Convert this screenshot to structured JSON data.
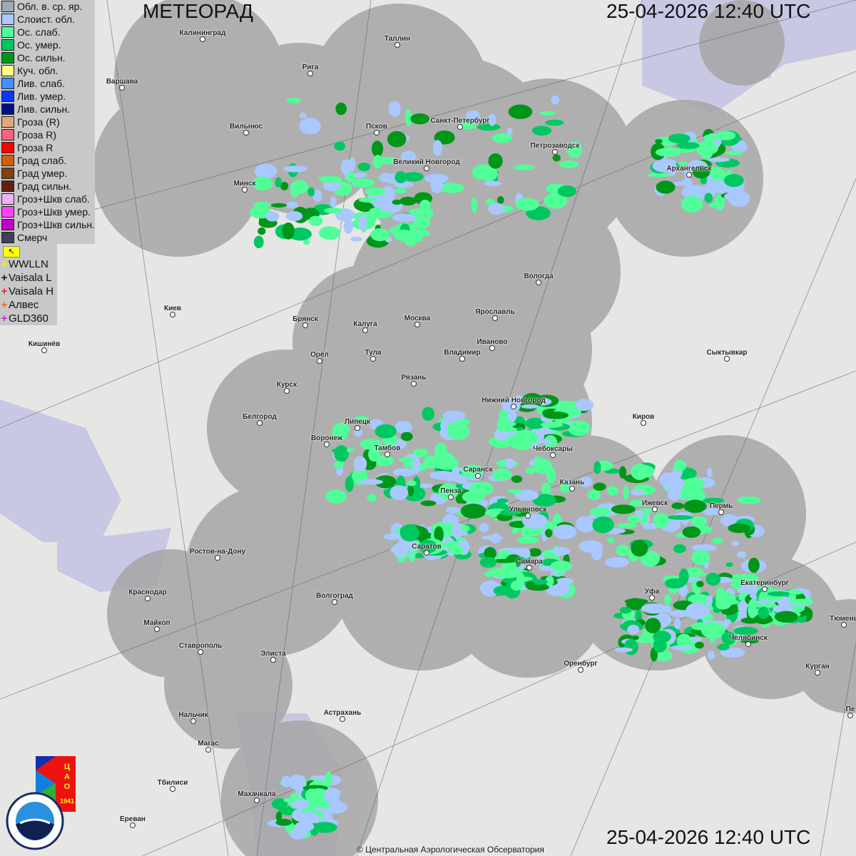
{
  "header": {
    "title": "МЕТЕОРАД",
    "timestamp": "25-04-2026  12:40 UTC"
  },
  "legend": [
    {
      "label": "Обл. в. ср. яр.",
      "color": "#a0a8b0"
    },
    {
      "label": "Слоист. обл.",
      "color": "#a8c8ff"
    },
    {
      "label": "Ос. слаб.",
      "color": "#50ff98"
    },
    {
      "label": "Ос. умер.",
      "color": "#00c860"
    },
    {
      "label": "Ос. сильн.",
      "color": "#009618"
    },
    {
      "label": "Куч. обл.",
      "color": "#ffff88"
    },
    {
      "label": "Лив. слаб.",
      "color": "#4090ff"
    },
    {
      "label": "Лив. умер.",
      "color": "#0838f8"
    },
    {
      "label": "Лив. сильн.",
      "color": "#001080"
    },
    {
      "label": "Гроза (R)",
      "color": "#e0a878"
    },
    {
      "label": "Гроза R)",
      "color": "#ff6080"
    },
    {
      "label": "Гроза R",
      "color": "#ff0000"
    },
    {
      "label": "Град слаб.",
      "color": "#d06010"
    },
    {
      "label": "Град умер.",
      "color": "#804010"
    },
    {
      "label": "Град сильн.",
      "color": "#602010"
    },
    {
      "label": "Гроз+Шкв слаб.",
      "color": "#f0b0f8"
    },
    {
      "label": "Гроз+Шкв умер.",
      "color": "#ff40ff"
    },
    {
      "label": "Гроз+Шкв сильн.",
      "color": "#c000c8"
    },
    {
      "label": "Смерч",
      "color": "#404058"
    }
  ],
  "lightning": [
    {
      "label": "WWLLN",
      "color": "#ffee00"
    },
    {
      "label": "Vaisala L",
      "color": "#111111"
    },
    {
      "label": "Vaisala H",
      "color": "#ff2020"
    },
    {
      "label": "Алвес",
      "color": "#e07010"
    },
    {
      "label": "GLD360",
      "color": "#d020d0"
    }
  ],
  "cities": [
    "Калининград",
    "Таллин",
    "Рига",
    "Варшава",
    "Вильнюс",
    "Псков",
    "Санкт-Петербург",
    "Петрозаводск",
    "Архангельск",
    "Великий Новгород",
    "Минск",
    "Вологда",
    "Киев",
    "Брянск",
    "Калуга",
    "Москва",
    "Ярославль",
    "Иваново",
    "Кишинёв",
    "Тула",
    "Орёл",
    "Владимир",
    "Сыктывкар",
    "Рязань",
    "Курск",
    "Нижний Новгород",
    "Киров",
    "Белгород",
    "Липецк",
    "Воронеж",
    "Тамбов",
    "Чебоксары",
    "Саранск",
    "Казань",
    "Пенза",
    "Ижевск",
    "Пермь",
    "Ульяновск",
    "Саратов",
    "Ростов-на-Дону",
    "Самара",
    "Екатеринбург",
    "Уфа",
    "Волгоград",
    "Краснодар",
    "Майкоп",
    "Тюмень",
    "Челябинск",
    "Ставрополь",
    "Элиста",
    "Оренбург",
    "Курган",
    "Пе",
    "Астрахань",
    "Нальчик",
    "Магас",
    "Тбилиси",
    "Махачкала",
    "Ереван"
  ],
  "logos": {
    "cao": "ЦАО 1941",
    "roshydromet": "РОСГИДРОМЕТ ROSHYDROMET"
  },
  "footer": {
    "copyright": "© Центральная Аэрологическая Обсерватория"
  }
}
